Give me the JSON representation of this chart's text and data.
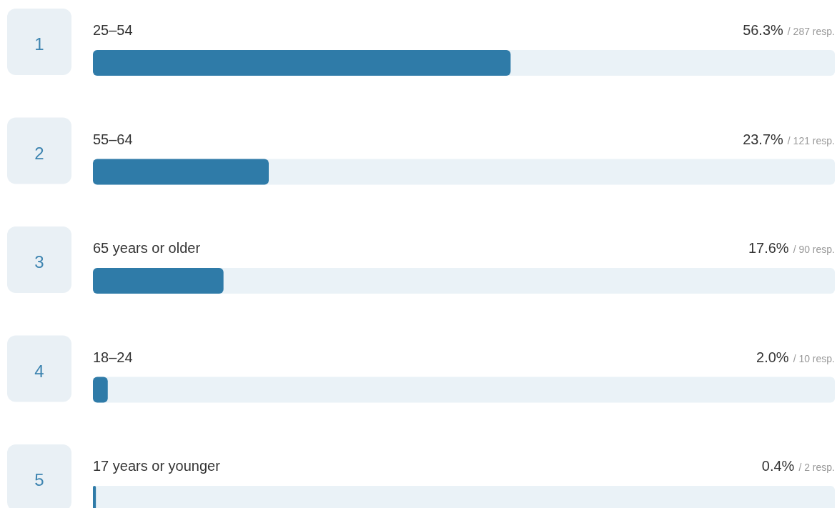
{
  "chart_data": {
    "type": "bar",
    "orientation": "horizontal",
    "categories": [
      "25–54",
      "55–64",
      "65 years or older",
      "18–24",
      "17 years or younger"
    ],
    "values": [
      56.3,
      23.7,
      17.6,
      2.0,
      0.4
    ],
    "value_labels": [
      "56.3% / 287 resp.",
      "23.7% / 121 resp.",
      "17.6% / 90 resp.",
      "2.0% / 10 resp.",
      "0.4% / 2 resp."
    ],
    "color": "#2f7ba8",
    "xlim": [
      0,
      100
    ],
    "annotations": [
      "1",
      "2",
      "3",
      "4",
      "5"
    ],
    "tick_labels": "y"
  }
}
